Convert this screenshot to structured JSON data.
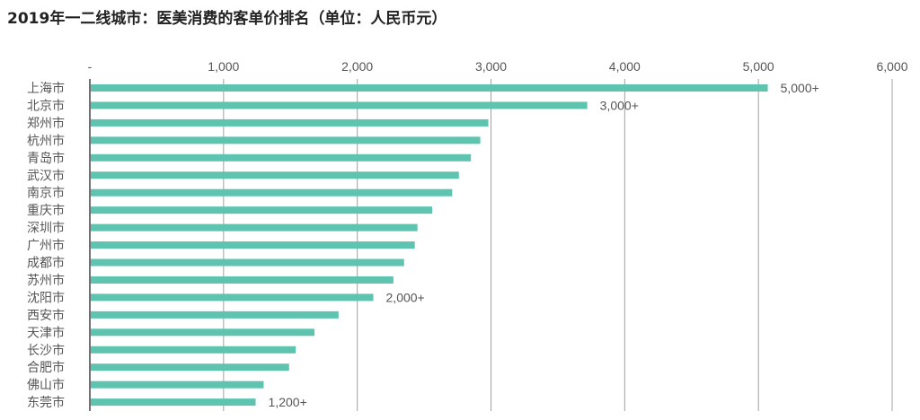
{
  "chart_data": {
    "type": "bar",
    "orientation": "horizontal",
    "title": "2019年一二线城市：医美消费的客单价排名（单位：人民币元）",
    "x_ticks": [
      "-",
      "1,000",
      "2,000",
      "3,000",
      "4,000",
      "5,000",
      "6,000"
    ],
    "xlim": [
      0,
      6000
    ],
    "grid": true,
    "colors": {
      "bar": "#5ec4b0",
      "grid": "#a0a0a0",
      "text": "#555555"
    },
    "categories": [
      "上海市",
      "北京市",
      "郑州市",
      "杭州市",
      "青岛市",
      "武汉市",
      "南京市",
      "重庆市",
      "深圳市",
      "广州市",
      "成都市",
      "苏州市",
      "沈阳市",
      "西安市",
      "天津市",
      "长沙市",
      "合肥市",
      "佛山市",
      "东莞市"
    ],
    "values": [
      5070,
      3720,
      2980,
      2920,
      2850,
      2760,
      2710,
      2560,
      2450,
      2430,
      2350,
      2270,
      2120,
      1860,
      1680,
      1540,
      1490,
      1300,
      1240
    ],
    "annotations": [
      {
        "category": "上海市",
        "text": "5,000+"
      },
      {
        "category": "北京市",
        "text": "3,000+"
      },
      {
        "category": "沈阳市",
        "text": "2,000+"
      },
      {
        "category": "东莞市",
        "text": "1,200+"
      }
    ]
  }
}
